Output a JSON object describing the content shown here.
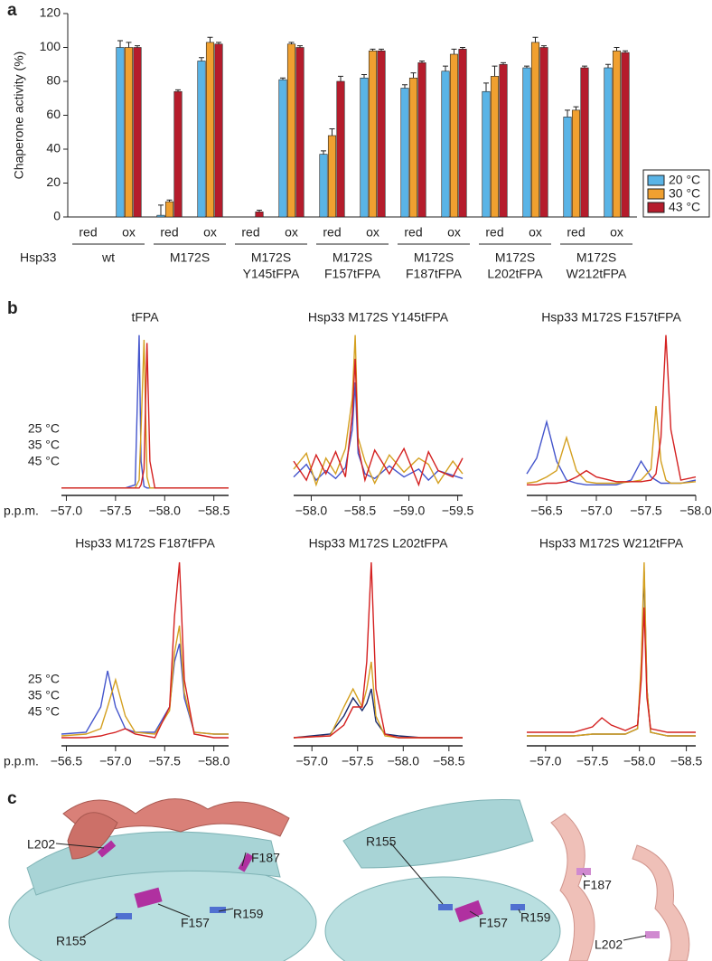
{
  "panel_labels": [
    "a",
    "b",
    "c"
  ],
  "chart_data": [
    {
      "type": "bar",
      "y_label": "Chaperone activity (%)",
      "row_label": "Hsp33",
      "categories": [
        "red",
        "ox",
        "red",
        "ox",
        "red",
        "ox",
        "red",
        "ox",
        "red",
        "ox",
        "red",
        "ox",
        "red",
        "ox"
      ],
      "groups": [
        [
          "wt"
        ],
        [
          "M172S"
        ],
        [
          "M172S",
          "Y145tFPA"
        ],
        [
          "M172S",
          "F157tFPA"
        ],
        [
          "M172S",
          "F187tFPA"
        ],
        [
          "M172S",
          "L202tFPA"
        ],
        [
          "M172S",
          "W212tFPA"
        ]
      ],
      "ylim": [
        0,
        120
      ],
      "yticks": [
        0,
        20,
        40,
        60,
        80,
        100,
        120
      ],
      "legend": "lower-right",
      "series": [
        {
          "name": "20 °C",
          "color": "#5ab4e6",
          "values": [
            0,
            100,
            1,
            92,
            0,
            81,
            37,
            82,
            76,
            86,
            74,
            88,
            59,
            88
          ],
          "errors": [
            0,
            4,
            6,
            2,
            0,
            1,
            2,
            2,
            2,
            3,
            5,
            1,
            4,
            2
          ]
        },
        {
          "name": "30 °C",
          "color": "#f0a030",
          "values": [
            0,
            100,
            9,
            103,
            0,
            102,
            48,
            98,
            82,
            96,
            83,
            103,
            63,
            98
          ],
          "errors": [
            0,
            3,
            1,
            3,
            0,
            1,
            4,
            1,
            3,
            3,
            6,
            3,
            2,
            2
          ]
        },
        {
          "name": "43 °C",
          "color": "#b51c2c",
          "values": [
            0,
            100,
            74,
            102,
            3,
            100,
            80,
            98,
            91,
            99,
            90,
            100,
            88,
            97
          ],
          "errors": [
            0,
            1,
            1,
            1,
            1,
            1,
            3,
            1,
            1,
            1,
            1,
            1,
            1,
            1
          ]
        }
      ]
    },
    {
      "type": "line",
      "title": "tFPA",
      "x_label": "p.p.m.",
      "x": [
        -56.95,
        -57.6,
        -57.7,
        -57.74,
        -57.76,
        -57.79,
        -57.82,
        -57.85,
        -57.9,
        -58.0,
        -58.65
      ],
      "xlim": [
        -56.95,
        -58.65
      ],
      "ylim": [
        0,
        105
      ],
      "xticks": [
        {
          "value": -57,
          "label": "−57.0"
        },
        {
          "value": -57.5,
          "label": "−57.5"
        },
        {
          "value": -58,
          "label": "−58.0"
        },
        {
          "value": -58.5,
          "label": "−58.5"
        }
      ],
      "series": [
        {
          "name": "25 °C",
          "color": "#4455cc",
          "values": [
            3,
            3,
            5,
            100,
            20,
            4,
            3,
            3,
            3,
            3,
            3
          ]
        },
        {
          "name": "35 °C",
          "color": "#d4a020",
          "values": [
            3,
            3,
            3,
            8,
            40,
            97,
            10,
            3,
            3,
            3,
            3
          ]
        },
        {
          "name": "45 °C",
          "color": "#d42020",
          "values": [
            3,
            3,
            3,
            3,
            5,
            15,
            95,
            20,
            3,
            3,
            3
          ]
        }
      ]
    },
    {
      "type": "line",
      "title": "Hsp33 M172S Y145tFPA",
      "x": [
        -57.82,
        -57.95,
        -58.05,
        -58.15,
        -58.25,
        -58.35,
        -58.42,
        -58.45,
        -58.48,
        -58.55,
        -58.65,
        -58.8,
        -58.95,
        -59.1,
        -59.2,
        -59.3,
        -59.45,
        -59.55
      ],
      "xlim": [
        -57.82,
        -59.55
      ],
      "ylim": [
        0,
        105
      ],
      "xticks": [
        {
          "value": -58,
          "label": "−58.0"
        },
        {
          "value": -58.5,
          "label": "−58.5"
        },
        {
          "value": -59,
          "label": "−59.0"
        },
        {
          "value": -59.5,
          "label": "−59.5"
        }
      ],
      "series": [
        {
          "color": "#4455cc",
          "values": [
            10,
            18,
            8,
            14,
            9,
            16,
            40,
            70,
            25,
            12,
            9,
            17,
            10,
            15,
            8,
            14,
            11,
            9
          ]
        },
        {
          "color": "#d4a020",
          "values": [
            15,
            25,
            5,
            22,
            12,
            28,
            60,
            100,
            35,
            20,
            6,
            24,
            13,
            22,
            18,
            6,
            20,
            12
          ]
        },
        {
          "color": "#d42020",
          "values": [
            20,
            8,
            24,
            12,
            26,
            10,
            50,
            85,
            30,
            8,
            27,
            12,
            28,
            5,
            26,
            14,
            10,
            22
          ]
        }
      ]
    },
    {
      "type": "line",
      "title": "Hsp33 M172S F157tFPA",
      "x": [
        -56.3,
        -56.4,
        -56.5,
        -56.6,
        -56.7,
        -56.8,
        -56.9,
        -57.0,
        -57.2,
        -57.35,
        -57.45,
        -57.55,
        -57.6,
        -57.65,
        -57.7,
        -57.75,
        -57.85,
        -58.0
      ],
      "xlim": [
        -56.3,
        -58.0
      ],
      "ylim": [
        0,
        105
      ],
      "xticks": [
        {
          "value": -56.5,
          "label": "−56.5"
        },
        {
          "value": -57,
          "label": "−57.0"
        },
        {
          "value": -57.5,
          "label": "−57.5"
        },
        {
          "value": -58,
          "label": "−58.0"
        }
      ],
      "series": [
        {
          "color": "#4455cc",
          "values": [
            12,
            22,
            45,
            20,
            8,
            6,
            5,
            5,
            5,
            8,
            20,
            10,
            8,
            6,
            6,
            6,
            6,
            8
          ]
        },
        {
          "color": "#d4a020",
          "values": [
            6,
            7,
            10,
            14,
            35,
            14,
            7,
            6,
            6,
            7,
            8,
            15,
            55,
            20,
            8,
            6,
            6,
            7
          ]
        },
        {
          "color": "#d42020",
          "values": [
            5,
            5,
            6,
            6,
            7,
            10,
            14,
            10,
            7,
            7,
            7,
            8,
            12,
            35,
            100,
            40,
            8,
            10
          ]
        }
      ]
    },
    {
      "type": "line",
      "title": "Hsp33 M172S F187tFPA",
      "x_label": "p.p.m.",
      "x": [
        -56.45,
        -56.7,
        -56.85,
        -56.92,
        -57.0,
        -57.1,
        -57.2,
        -57.4,
        -57.55,
        -57.6,
        -57.65,
        -57.7,
        -57.8,
        -58.0,
        -58.15
      ],
      "xlim": [
        -56.45,
        -58.15
      ],
      "ylim": [
        0,
        105
      ],
      "xticks": [
        {
          "value": -56.5,
          "label": "−56.5"
        },
        {
          "value": -57,
          "label": "−57.0"
        },
        {
          "value": -57.5,
          "label": "−57.5"
        },
        {
          "value": -58,
          "label": "−58.0"
        }
      ],
      "series": [
        {
          "name": "25 °C",
          "color": "#4455cc",
          "values": [
            5,
            6,
            20,
            40,
            20,
            8,
            6,
            6,
            20,
            45,
            55,
            25,
            6,
            5,
            5
          ]
        },
        {
          "name": "35 °C",
          "color": "#d4a020",
          "values": [
            4,
            5,
            8,
            20,
            35,
            15,
            6,
            5,
            18,
            50,
            65,
            28,
            6,
            5,
            5
          ]
        },
        {
          "name": "45 °C",
          "color": "#d42020",
          "values": [
            3,
            3,
            4,
            5,
            6,
            8,
            5,
            3,
            20,
            70,
            100,
            35,
            5,
            3,
            3
          ]
        }
      ]
    },
    {
      "type": "line",
      "title": "Hsp33 M172S L202tFPA",
      "x": [
        -56.8,
        -57.2,
        -57.35,
        -57.45,
        -57.55,
        -57.6,
        -57.65,
        -57.7,
        -57.8,
        -57.95,
        -58.2,
        -58.65
      ],
      "xlim": [
        -56.8,
        -58.65
      ],
      "ylim": [
        0,
        105
      ],
      "xticks": [
        {
          "value": -57,
          "label": "−57.0"
        },
        {
          "value": -57.5,
          "label": "−57.5"
        },
        {
          "value": -58,
          "label": "−58.0"
        },
        {
          "value": -58.5,
          "label": "−58.5"
        }
      ],
      "series": [
        {
          "color": "#1a2a6c",
          "values": [
            3,
            5,
            15,
            25,
            18,
            22,
            30,
            12,
            5,
            4,
            3,
            3
          ]
        },
        {
          "color": "#d4a020",
          "values": [
            3,
            4,
            20,
            30,
            20,
            30,
            45,
            15,
            4,
            3,
            3,
            3
          ]
        },
        {
          "color": "#d42020",
          "values": [
            3,
            4,
            10,
            20,
            20,
            45,
            100,
            30,
            5,
            3,
            3,
            3
          ]
        }
      ]
    },
    {
      "type": "line",
      "title": "Hsp33 M172S W212tFPA",
      "x": [
        -56.8,
        -57.3,
        -57.5,
        -57.6,
        -57.7,
        -57.85,
        -57.98,
        -58.02,
        -58.05,
        -58.08,
        -58.12,
        -58.3,
        -58.6
      ],
      "xlim": [
        -56.8,
        -58.6
      ],
      "ylim": [
        0,
        105
      ],
      "xticks": [
        {
          "value": -57,
          "label": "−57.0"
        },
        {
          "value": -57.5,
          "label": "−57.5"
        },
        {
          "value": -58,
          "label": "−58.0"
        },
        {
          "value": -58.5,
          "label": "−58.5"
        }
      ],
      "series": [
        {
          "color": "#333a55",
          "values": [
            4,
            4,
            5,
            5,
            5,
            5,
            8,
            40,
            95,
            30,
            6,
            4,
            4
          ]
        },
        {
          "color": "#d4a020",
          "values": [
            4,
            4,
            5,
            5,
            5,
            5,
            8,
            45,
            100,
            30,
            6,
            4,
            4
          ]
        },
        {
          "color": "#d42020",
          "values": [
            6,
            6,
            9,
            14,
            10,
            7,
            10,
            35,
            75,
            25,
            8,
            6,
            6
          ]
        }
      ]
    }
  ],
  "structure": {
    "left_labels": [
      "L202",
      "F187",
      "R155",
      "F157",
      "R159"
    ],
    "right_labels": [
      "R155",
      "F187",
      "F157",
      "R159",
      "L202"
    ]
  }
}
